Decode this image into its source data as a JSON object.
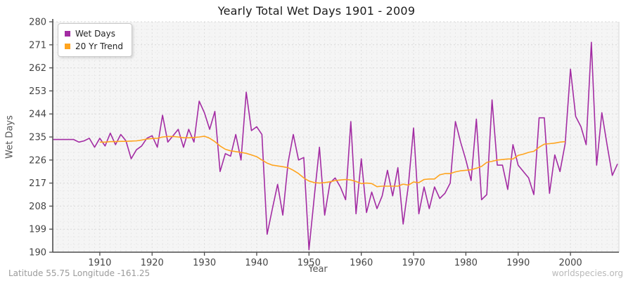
{
  "title": "Yearly Total Wet Days 1901 - 2009",
  "footer": {
    "left": "Latitude 55.75 Longitude -161.25",
    "right": "worldspecies.org"
  },
  "chart_data": {
    "type": "line",
    "title": "Yearly Total Wet Days 1901 - 2009",
    "xlabel": "Year",
    "ylabel": "Wet Days",
    "x_start_year": 1901,
    "x_end_year": 2009,
    "ylim": [
      190,
      280
    ],
    "y_ticks": [
      190,
      199,
      208,
      217,
      226,
      235,
      244,
      253,
      262,
      271,
      280
    ],
    "x_ticks": [
      1910,
      1920,
      1930,
      1940,
      1950,
      1960,
      1970,
      1980,
      1990,
      2000
    ],
    "grid": true,
    "legend_position": "top-left",
    "plot_bg": "#f5f5f5",
    "series": [
      {
        "name": "Wet Days",
        "color": "#A32CA3",
        "start_year": 1901,
        "values": [
          234,
          234,
          234,
          234,
          234,
          233,
          233.5,
          234.5,
          231,
          234.5,
          231.5,
          236.5,
          232,
          236,
          233.5,
          226.5,
          230,
          231.5,
          234.5,
          235.5,
          231,
          243.5,
          233,
          235.5,
          238,
          231,
          238,
          233,
          249,
          244.5,
          238,
          245,
          221.5,
          228.5,
          227.5,
          236,
          226,
          252.5,
          237.5,
          239,
          236,
          197,
          207,
          216.5,
          204.5,
          225,
          236,
          226,
          227,
          191,
          211.5,
          231,
          204.5,
          217,
          219,
          215.5,
          210.5,
          241,
          205,
          226.5,
          205.5,
          213.5,
          207,
          212,
          222,
          212,
          223,
          201,
          216,
          238.5,
          205,
          215.5,
          207,
          215.5,
          211,
          213,
          217,
          241,
          233,
          226,
          218,
          242,
          210.5,
          212.5,
          249.5,
          224,
          224,
          214.5,
          232,
          224,
          221.5,
          219,
          212.5,
          242.5,
          242.5,
          213,
          228,
          221.5,
          232.5,
          261.5,
          243,
          239,
          232,
          272,
          224,
          244.5,
          232,
          220,
          224.5
        ]
      },
      {
        "name": "20 Yr Trend",
        "color": "#FFA41E",
        "start_year": 1910,
        "values": [
          233,
          233,
          233.2,
          233.2,
          233.3,
          233.3,
          233.4,
          233.5,
          233.8,
          234.2,
          234.4,
          234.5,
          235,
          235.2,
          235.2,
          235,
          234.7,
          234.7,
          234.8,
          235,
          235.3,
          234.5,
          233.2,
          231.5,
          230.2,
          229.6,
          229.3,
          229,
          228.6,
          228,
          227.3,
          226,
          224.8,
          224,
          223.7,
          223.4,
          223,
          222,
          220.7,
          219,
          217.8,
          217.2,
          217,
          217.2,
          217.5,
          218,
          218.2,
          218.4,
          218.2,
          217.6,
          216.8,
          217,
          216.8,
          215.6,
          215.8,
          215.8,
          215.8,
          215.8,
          216.6,
          216.2,
          217.4,
          217.2,
          218.4,
          218.6,
          218.6,
          220.2,
          220.7,
          220.7,
          221.4,
          221.8,
          222,
          222.2,
          222.8,
          223.5,
          225.1,
          225.5,
          226,
          226.2,
          226.4,
          226.4,
          227.8,
          228.3,
          229,
          229.4,
          231,
          232.2,
          232.4,
          232.6,
          233,
          233.2
        ]
      }
    ]
  }
}
